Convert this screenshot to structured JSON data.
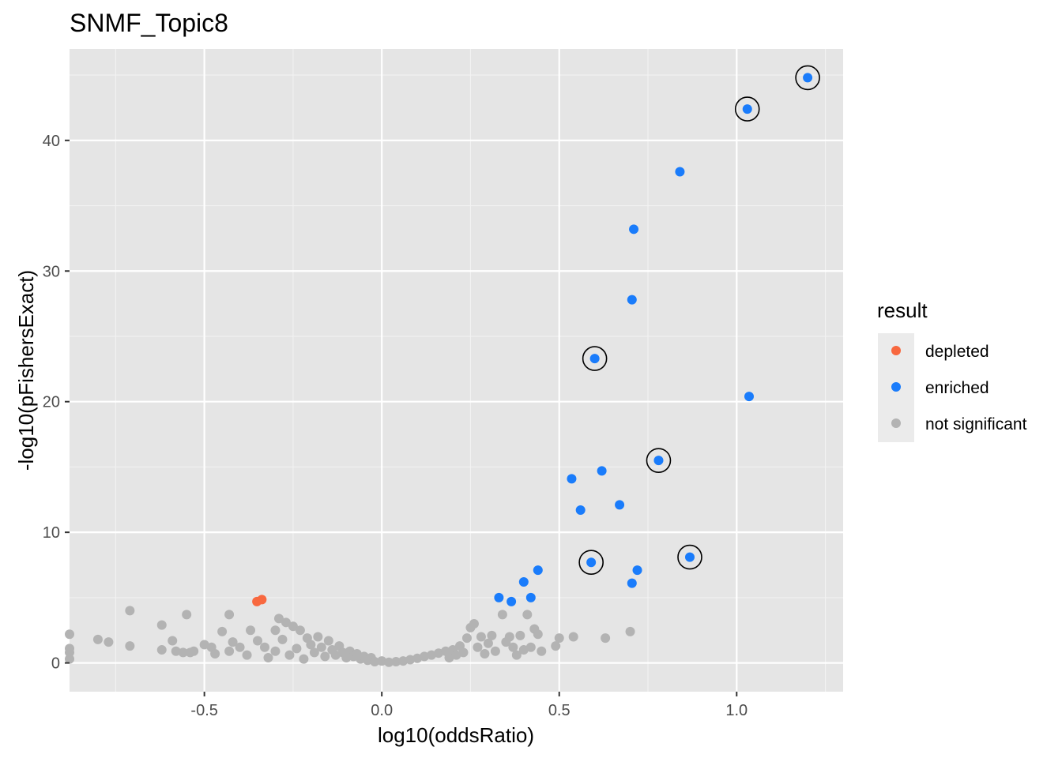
{
  "chart_data": {
    "type": "scatter",
    "title": "SNMF_Topic8",
    "xlabel": "log10(oddsRatio)",
    "ylabel": "-log10(pFishersExact)",
    "xlim": [
      -0.88,
      1.3
    ],
    "ylim": [
      -2.2,
      47
    ],
    "x_ticks": [
      -0.5,
      0.0,
      0.5,
      1.0
    ],
    "x_tick_labels": [
      "-0.5",
      "0.0",
      "0.5",
      "1.0"
    ],
    "y_ticks": [
      0,
      10,
      20,
      30,
      40
    ],
    "y_tick_labels": [
      "0",
      "10",
      "20",
      "30",
      "40"
    ],
    "grid": true,
    "panel_background": "#e5e5e5",
    "legend": {
      "title": "result",
      "position": "right",
      "entries": [
        {
          "label": "depleted",
          "color": "#f8683f"
        },
        {
          "label": "enriched",
          "color": "#1a7cfb"
        },
        {
          "label": "not significant",
          "color": "#b3b3b3"
        }
      ]
    },
    "series": [
      {
        "name": "depleted",
        "color": "#f8683f",
        "points": [
          [
            -0.352,
            4.7
          ],
          [
            -0.338,
            4.85
          ]
        ]
      },
      {
        "name": "enriched",
        "color": "#1a7cfb",
        "points": [
          [
            1.2,
            44.8
          ],
          [
            1.03,
            42.4
          ],
          [
            0.84,
            37.6
          ],
          [
            0.71,
            33.2
          ],
          [
            0.705,
            27.8
          ],
          [
            0.6,
            23.3
          ],
          [
            1.035,
            20.4
          ],
          [
            0.78,
            15.5
          ],
          [
            0.535,
            14.1
          ],
          [
            0.62,
            14.7
          ],
          [
            0.67,
            12.1
          ],
          [
            0.56,
            11.7
          ],
          [
            0.868,
            8.1
          ],
          [
            0.59,
            7.7
          ],
          [
            0.44,
            7.1
          ],
          [
            0.72,
            7.1
          ],
          [
            0.4,
            6.2
          ],
          [
            0.705,
            6.1
          ],
          [
            0.33,
            5.0
          ],
          [
            0.42,
            5.0
          ],
          [
            0.365,
            4.7
          ]
        ]
      },
      {
        "name": "not significant",
        "color": "#b3b3b3",
        "points": [
          [
            -0.88,
            2.2
          ],
          [
            -0.88,
            1.1
          ],
          [
            -0.88,
            0.8
          ],
          [
            -0.88,
            0.3
          ],
          [
            -0.8,
            1.8
          ],
          [
            -0.77,
            1.6
          ],
          [
            -0.71,
            4.0
          ],
          [
            -0.71,
            1.3
          ],
          [
            -0.62,
            2.9
          ],
          [
            -0.62,
            1.0
          ],
          [
            -0.59,
            1.7
          ],
          [
            -0.58,
            0.9
          ],
          [
            -0.56,
            0.8
          ],
          [
            -0.55,
            3.7
          ],
          [
            -0.54,
            0.8
          ],
          [
            -0.53,
            0.9
          ],
          [
            -0.5,
            1.4
          ],
          [
            -0.48,
            1.2
          ],
          [
            -0.47,
            0.7
          ],
          [
            -0.45,
            2.4
          ],
          [
            -0.43,
            0.9
          ],
          [
            -0.43,
            3.7
          ],
          [
            -0.42,
            1.6
          ],
          [
            -0.4,
            1.2
          ],
          [
            -0.38,
            0.6
          ],
          [
            -0.37,
            2.5
          ],
          [
            -0.35,
            1.7
          ],
          [
            -0.33,
            1.2
          ],
          [
            -0.32,
            0.4
          ],
          [
            -0.3,
            2.5
          ],
          [
            -0.3,
            0.9
          ],
          [
            -0.29,
            3.4
          ],
          [
            -0.28,
            1.8
          ],
          [
            -0.27,
            3.1
          ],
          [
            -0.26,
            0.6
          ],
          [
            -0.25,
            2.8
          ],
          [
            -0.24,
            1.1
          ],
          [
            -0.23,
            2.5
          ],
          [
            -0.22,
            0.3
          ],
          [
            -0.21,
            1.9
          ],
          [
            -0.2,
            1.4
          ],
          [
            -0.19,
            0.8
          ],
          [
            -0.18,
            2.0
          ],
          [
            -0.17,
            1.2
          ],
          [
            -0.16,
            0.5
          ],
          [
            -0.15,
            1.7
          ],
          [
            -0.14,
            1.0
          ],
          [
            -0.13,
            0.6
          ],
          [
            -0.12,
            1.3
          ],
          [
            -0.11,
            0.8
          ],
          [
            -0.1,
            0.4
          ],
          [
            -0.09,
            0.9
          ],
          [
            -0.08,
            0.5
          ],
          [
            -0.07,
            0.7
          ],
          [
            -0.06,
            0.3
          ],
          [
            -0.05,
            0.5
          ],
          [
            -0.04,
            0.2
          ],
          [
            -0.03,
            0.4
          ],
          [
            -0.02,
            0.1
          ],
          [
            0.0,
            0.15
          ],
          [
            0.02,
            0.05
          ],
          [
            0.04,
            0.1
          ],
          [
            0.06,
            0.15
          ],
          [
            0.08,
            0.25
          ],
          [
            0.1,
            0.35
          ],
          [
            0.12,
            0.5
          ],
          [
            0.14,
            0.6
          ],
          [
            0.16,
            0.75
          ],
          [
            0.18,
            0.9
          ],
          [
            0.19,
            0.4
          ],
          [
            0.2,
            1.0
          ],
          [
            0.21,
            0.6
          ],
          [
            0.22,
            1.3
          ],
          [
            0.23,
            0.8
          ],
          [
            0.24,
            1.9
          ],
          [
            0.25,
            2.7
          ],
          [
            0.26,
            3.0
          ],
          [
            0.27,
            1.2
          ],
          [
            0.28,
            2.0
          ],
          [
            0.29,
            0.7
          ],
          [
            0.3,
            1.5
          ],
          [
            0.31,
            2.1
          ],
          [
            0.32,
            0.9
          ],
          [
            0.34,
            3.7
          ],
          [
            0.35,
            1.6
          ],
          [
            0.36,
            2.0
          ],
          [
            0.37,
            1.2
          ],
          [
            0.38,
            0.6
          ],
          [
            0.39,
            2.1
          ],
          [
            0.4,
            1.0
          ],
          [
            0.41,
            3.7
          ],
          [
            0.42,
            1.2
          ],
          [
            0.43,
            2.6
          ],
          [
            0.44,
            2.2
          ],
          [
            0.45,
            0.9
          ],
          [
            0.5,
            1.9
          ],
          [
            0.49,
            1.3
          ],
          [
            0.54,
            2.0
          ],
          [
            0.63,
            1.9
          ],
          [
            0.7,
            2.4
          ]
        ]
      }
    ]
  }
}
